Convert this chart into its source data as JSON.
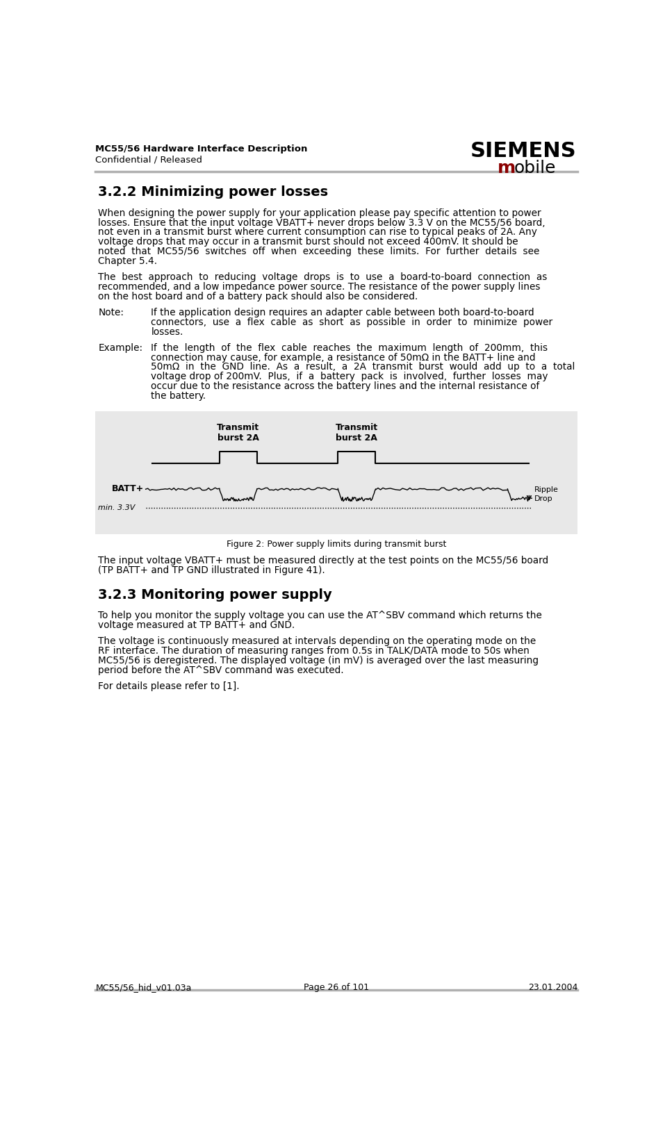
{
  "header_left_line1": "MC55/56 Hardware Interface Description",
  "header_left_line2": "Confidential / Released",
  "header_right_siemens": "SIEMENS",
  "header_right_mobile_m": "m",
  "header_right_mobile_rest": "obile",
  "footer_left": "MC55/56_hid_v01.03a",
  "footer_center": "Page 26 of 101",
  "footer_right": "23.01.2004",
  "section_title": "3.2.2 Minimizing power losses",
  "note_label": "Note:",
  "note_text_lines": [
    "If the application design requires an adapter cable between both board-to-board",
    "connectors,  use  a  flex  cable  as  short  as  possible  in  order  to  minimize  power",
    "losses."
  ],
  "example_label": "Example:",
  "example_text_lines": [
    "If  the  length  of  the  flex  cable  reaches  the  maximum  length  of  200mm,  this",
    "connection may cause, for example, a resistance of 50mΩ in the BATT+ line and",
    "50mΩ  in  the  GND  line.  As  a  result,  a  2A  transmit  burst  would  add  up  to  a  total",
    "voltage drop of 200mV.  Plus,  if  a  battery  pack  is  involved,  further  losses  may",
    "occur due to the resistance across the battery lines and the internal resistance of",
    "the battery."
  ],
  "figure_caption": "Figure 2: Power supply limits during transmit burst",
  "section2_title": "3.2.3 Monitoring power supply",
  "para6": "For details please refer to [1].",
  "bg_color": "#ffffff",
  "header_line_color": "#b0b0b0",
  "text_color": "#000000",
  "siemens_color": "#000000",
  "mobile_m_color": "#8b0000",
  "figure_bg": "#e8e8e8"
}
